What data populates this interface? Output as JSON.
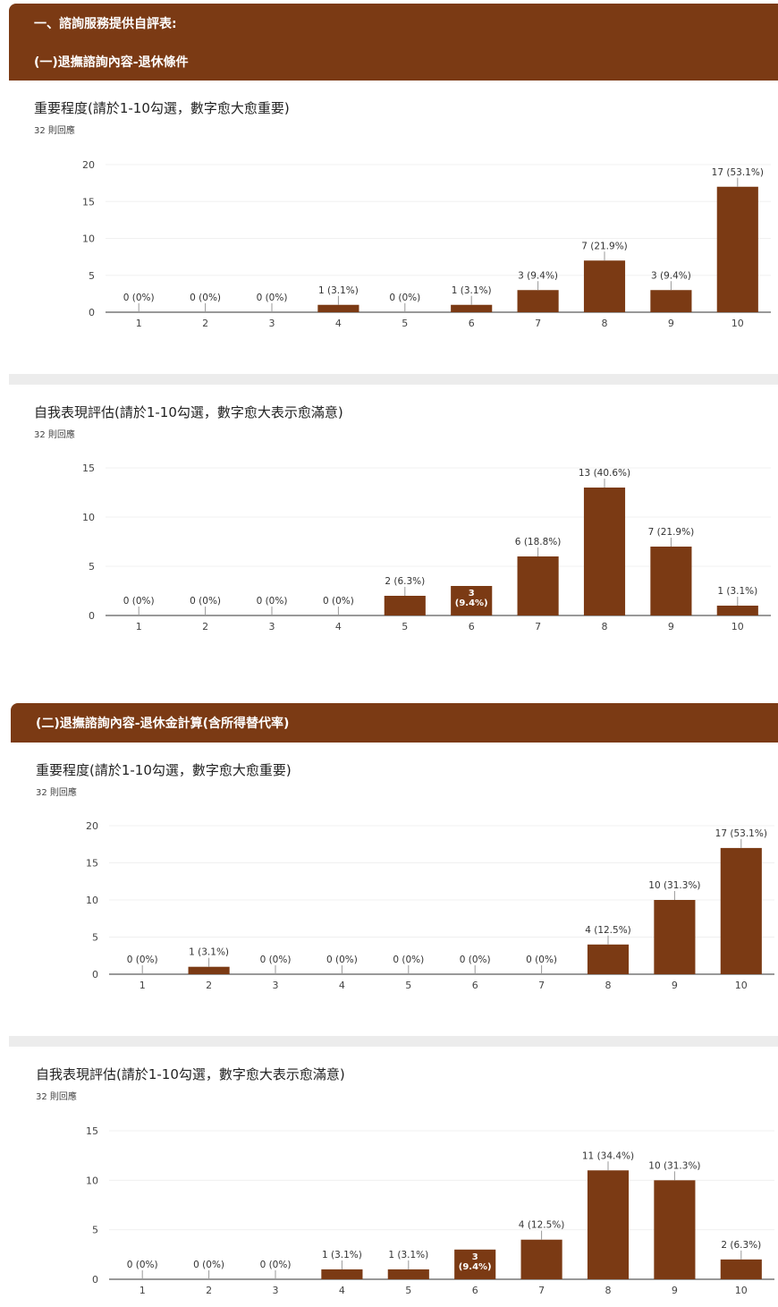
{
  "section1": {
    "header": "一、諮詢服務提供自評表:",
    "sub": "(一)退撫諮詢內容-退休條件"
  },
  "section2": {
    "sub": "(二)退撫諮詢內容-退休金計算(含所得替代率)"
  },
  "colors": {
    "header": "#7b3a14",
    "bar": "#7b3a14"
  },
  "questions": [
    {
      "title": "重要程度(請於1-10勾選，數字愈大愈重要)",
      "count": "32 則回應"
    },
    {
      "title": "自我表現評估(請於1-10勾選，數字愈大表示愈滿意)",
      "count": "32 則回應"
    },
    {
      "title": "重要程度(請於1-10勾選，數字愈大愈重要)",
      "count": "32 則回應"
    },
    {
      "title": "自我表現評估(請於1-10勾選，數字愈大表示愈滿意)",
      "count": "32 則回應"
    }
  ],
  "chart_data": [
    {
      "type": "bar",
      "categories": [
        "1",
        "2",
        "3",
        "4",
        "5",
        "6",
        "7",
        "8",
        "9",
        "10"
      ],
      "values": [
        0,
        0,
        0,
        1,
        0,
        1,
        3,
        7,
        3,
        17
      ],
      "labels": [
        "0 (0%)",
        "0 (0%)",
        "0 (0%)",
        "1 (3.1%)",
        "0 (0%)",
        "1 (3.1%)",
        "3 (9.4%)",
        "7 (21.9%)",
        "3 (9.4%)",
        "17 (53.1%)"
      ],
      "yticks": [
        0,
        5,
        10,
        15,
        20
      ],
      "ylim": [
        0,
        20
      ]
    },
    {
      "type": "bar",
      "categories": [
        "1",
        "2",
        "3",
        "4",
        "5",
        "6",
        "7",
        "8",
        "9",
        "10"
      ],
      "values": [
        0,
        0,
        0,
        0,
        2,
        3,
        6,
        13,
        7,
        1
      ],
      "labels": [
        "0 (0%)",
        "0 (0%)",
        "0 (0%)",
        "0 (0%)",
        "2 (6.3%)",
        "3 (9.4%)",
        "6 (18.8%)",
        "13 (40.6%)",
        "7 (21.9%)",
        "1 (3.1%)"
      ],
      "yticks": [
        0,
        5,
        10,
        15
      ],
      "ylim": [
        0,
        15
      ]
    },
    {
      "type": "bar",
      "categories": [
        "1",
        "2",
        "3",
        "4",
        "5",
        "6",
        "7",
        "8",
        "9",
        "10"
      ],
      "values": [
        0,
        1,
        0,
        0,
        0,
        0,
        0,
        4,
        10,
        17
      ],
      "labels": [
        "0 (0%)",
        "1 (3.1%)",
        "0 (0%)",
        "0 (0%)",
        "0 (0%)",
        "0 (0%)",
        "0 (0%)",
        "4 (12.5%)",
        "10 (31.3%)",
        "17 (53.1%)"
      ],
      "yticks": [
        0,
        5,
        10,
        15,
        20
      ],
      "ylim": [
        0,
        20
      ]
    },
    {
      "type": "bar",
      "categories": [
        "1",
        "2",
        "3",
        "4",
        "5",
        "6",
        "7",
        "8",
        "9",
        "10"
      ],
      "values": [
        0,
        0,
        0,
        1,
        1,
        3,
        4,
        11,
        10,
        2
      ],
      "labels": [
        "0 (0%)",
        "0 (0%)",
        "0 (0%)",
        "1 (3.1%)",
        "1 (3.1%)",
        "3 (9.4%)",
        "4 (12.5%)",
        "11 (34.4%)",
        "10 (31.3%)",
        "2 (6.3%)"
      ],
      "yticks": [
        0,
        5,
        10,
        15
      ],
      "ylim": [
        0,
        15
      ]
    }
  ]
}
